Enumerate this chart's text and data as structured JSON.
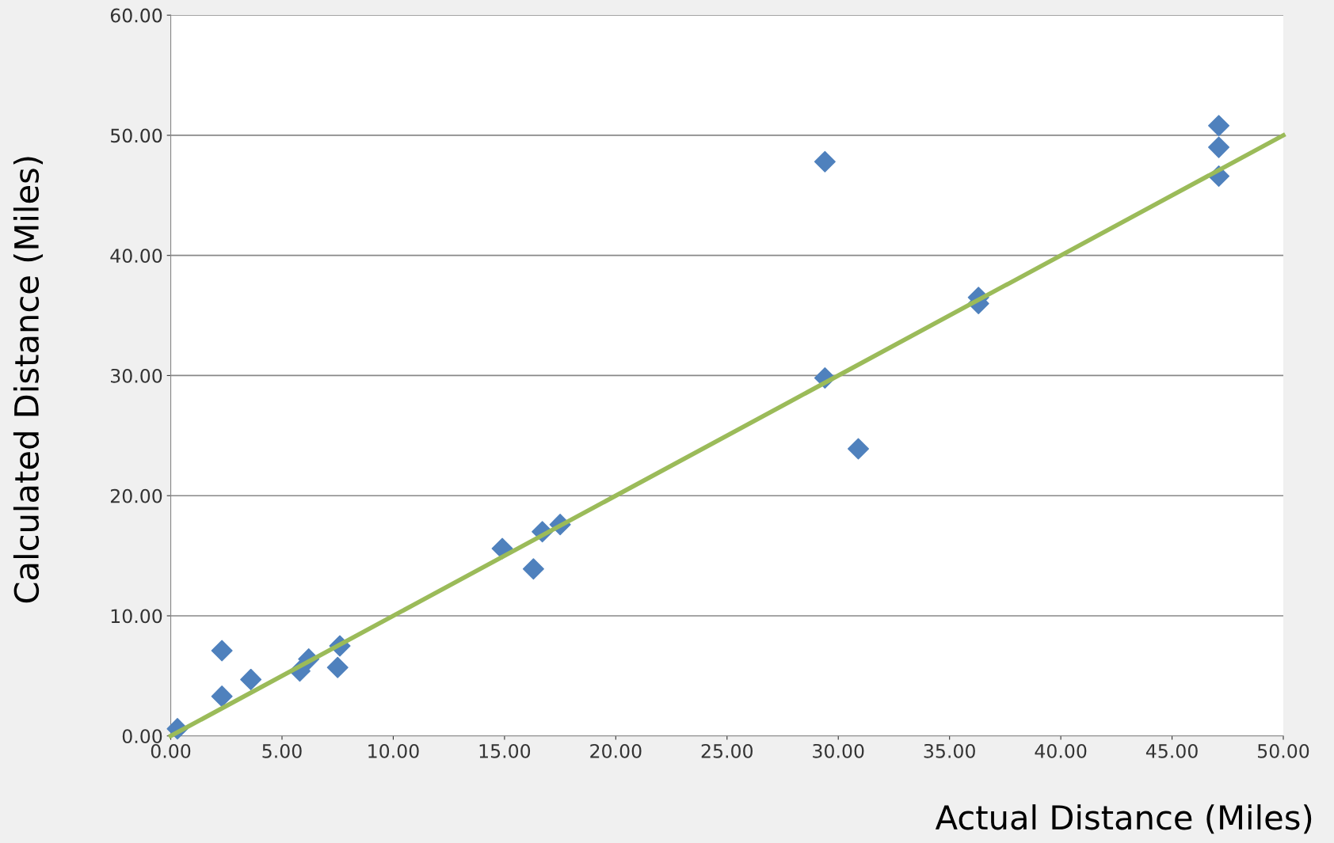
{
  "chart_data": {
    "type": "scatter",
    "xlabel": "Actual Distance (Miles)",
    "ylabel": "Calculated Distance (Miles)",
    "xlim": [
      0,
      50
    ],
    "ylim": [
      0,
      60
    ],
    "xticks": [
      {
        "value": 0,
        "label": "0.00"
      },
      {
        "value": 5,
        "label": "5.00"
      },
      {
        "value": 10,
        "label": "10.00"
      },
      {
        "value": 15,
        "label": "15.00"
      },
      {
        "value": 20,
        "label": "20.00"
      },
      {
        "value": 25,
        "label": "25.00"
      },
      {
        "value": 30,
        "label": "30.00"
      },
      {
        "value": 35,
        "label": "35.00"
      },
      {
        "value": 40,
        "label": "40.00"
      },
      {
        "value": 45,
        "label": "45.00"
      },
      {
        "value": 50,
        "label": "50.00"
      }
    ],
    "yticks": [
      {
        "value": 0,
        "label": "0.00"
      },
      {
        "value": 10,
        "label": "10.00"
      },
      {
        "value": 20,
        "label": "20.00"
      },
      {
        "value": 30,
        "label": "30.00"
      },
      {
        "value": 40,
        "label": "40.00"
      },
      {
        "value": 50,
        "label": "50.00"
      },
      {
        "value": 60,
        "label": "60.00"
      }
    ],
    "grid": "y",
    "marker": "diamond",
    "series": [
      {
        "color": "#4f81bd",
        "x": [
          0.3,
          2.3,
          2.3,
          3.6,
          5.8,
          6.2,
          7.5,
          7.6,
          14.9,
          16.3,
          16.7,
          17.5,
          29.4,
          29.4,
          30.9,
          36.3,
          36.3,
          47.1,
          47.1,
          47.1
        ],
        "values": [
          0.6,
          7.1,
          3.3,
          4.7,
          5.4,
          6.4,
          5.7,
          7.5,
          15.6,
          13.9,
          17.0,
          17.6,
          47.8,
          29.8,
          23.9,
          36.5,
          36.0,
          50.8,
          49.0,
          46.6
        ]
      },
      {
        "type": "line",
        "color": "#9bbb59",
        "x": [
          0,
          50
        ],
        "values": [
          0,
          50
        ],
        "marker": "none"
      }
    ]
  }
}
